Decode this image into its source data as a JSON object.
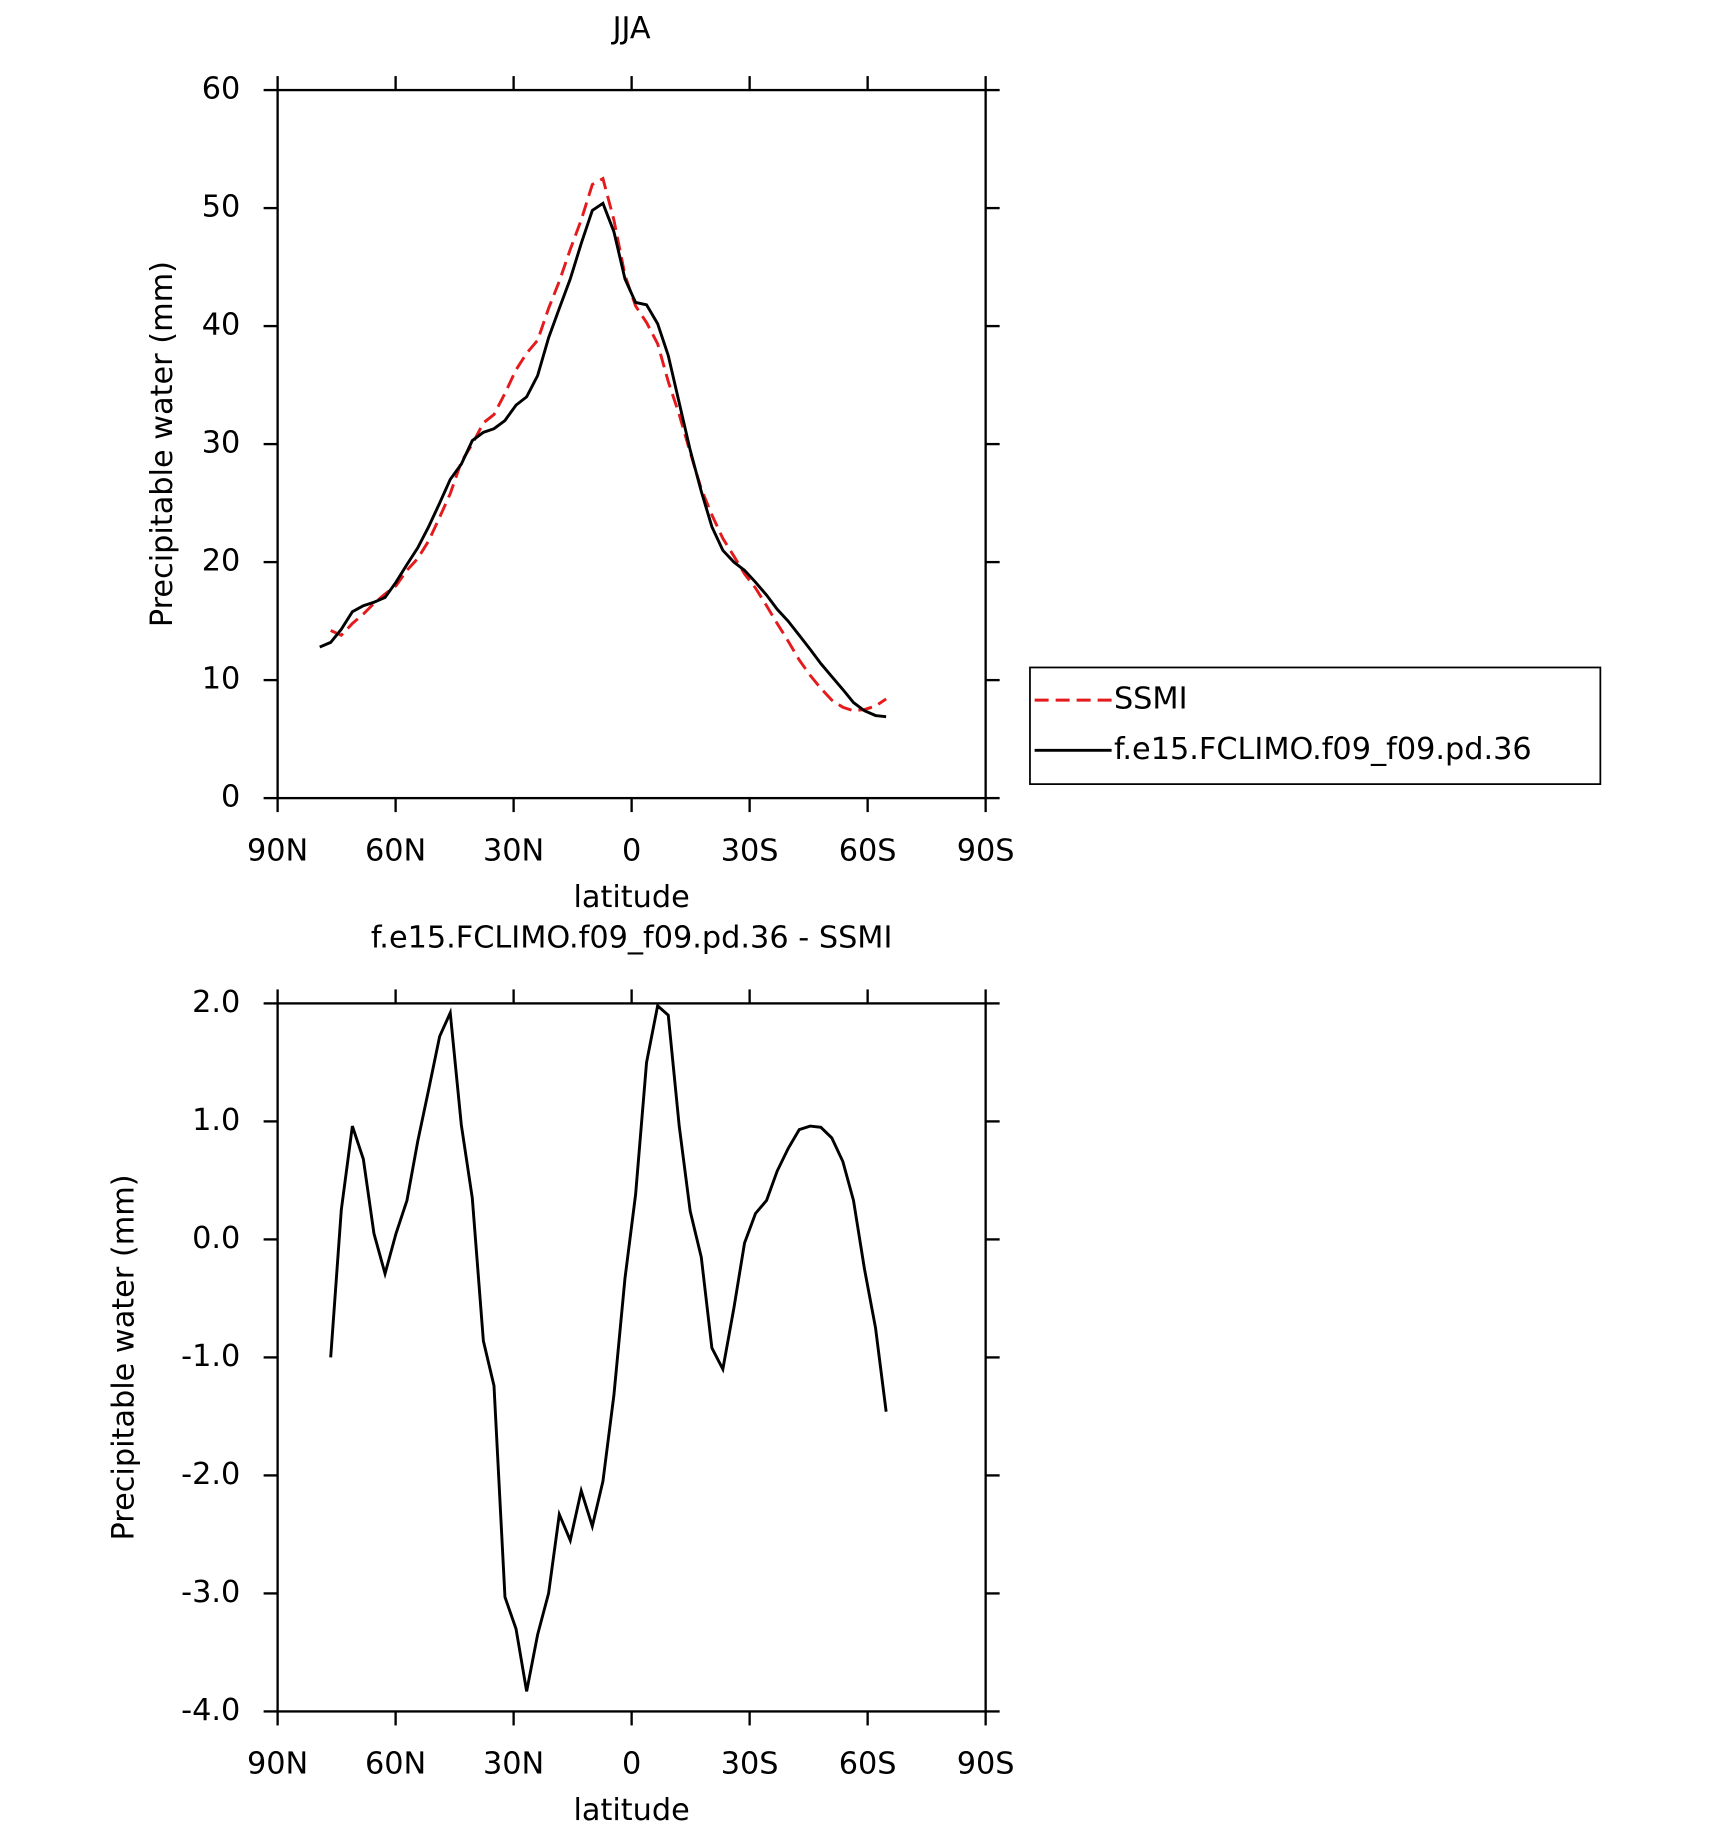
{
  "chart_data": [
    {
      "type": "line",
      "title": "JJA",
      "xlabel": "latitude",
      "ylabel": "Precipitable water (mm)",
      "xlim": [
        90,
        -90
      ],
      "xticks": [
        {
          "value": 90,
          "label": "90N"
        },
        {
          "value": 60,
          "label": "60N"
        },
        {
          "value": 30,
          "label": "30N"
        },
        0,
        {
          "value": -30,
          "label": "30S"
        },
        {
          "value": -60,
          "label": "60S"
        },
        {
          "value": -90,
          "label": "90S"
        }
      ],
      "ylim": [
        0,
        60
      ],
      "yticks": [
        0,
        10,
        20,
        30,
        40,
        50,
        60
      ],
      "legend": "outside right",
      "x": [
        79.3,
        76.5,
        73.8,
        71.0,
        68.2,
        65.5,
        62.7,
        59.9,
        57.1,
        54.4,
        51.6,
        48.8,
        46.1,
        43.3,
        40.5,
        37.7,
        35.0,
        32.2,
        29.4,
        26.7,
        23.9,
        21.1,
        18.4,
        15.6,
        12.8,
        10.0,
        7.3,
        4.5,
        1.7,
        -1.0,
        -3.8,
        -6.6,
        -9.3,
        -12.1,
        -14.9,
        -17.7,
        -20.4,
        -23.2,
        -26.0,
        -28.7,
        -31.5,
        -34.3,
        -37.0,
        -39.8,
        -42.6,
        -45.4,
        -48.1,
        -50.9,
        -53.7,
        -56.4,
        -59.2,
        -62.0,
        -64.7
      ],
      "series": [
        {
          "name": "SSMI",
          "color": "#e41a1c",
          "dash": true,
          "values": [
            null,
            14.2,
            13.8,
            14.8,
            15.6,
            16.5,
            17.3,
            18.0,
            19.3,
            20.3,
            21.8,
            23.8,
            25.8,
            28.5,
            30.0,
            31.8,
            32.5,
            34.3,
            36.3,
            37.7,
            38.8,
            41.5,
            43.8,
            46.5,
            49.0,
            52.0,
            52.5,
            49.0,
            44.3,
            41.7,
            40.3,
            38.5,
            35.3,
            32.5,
            29.3,
            26.2,
            24.0,
            22.0,
            20.5,
            19.0,
            17.8,
            16.3,
            14.8,
            13.3,
            11.7,
            10.4,
            9.3,
            8.3,
            7.7,
            7.4,
            7.5,
            7.8,
            8.4
          ]
        },
        {
          "name": "f.e15.FCLIMO.f09_f09.pd.36",
          "color": "#000000",
          "dash": false,
          "values": [
            12.8,
            13.2,
            14.3,
            15.8,
            16.3,
            16.6,
            17.0,
            18.3,
            19.8,
            21.2,
            23.0,
            25.0,
            27.0,
            28.3,
            30.3,
            31.0,
            31.3,
            32.0,
            33.3,
            34.0,
            35.8,
            39.0,
            41.5,
            44.0,
            47.0,
            49.8,
            50.4,
            48.0,
            44.0,
            42.0,
            41.8,
            40.2,
            37.5,
            33.5,
            29.5,
            26.0,
            23.0,
            21.0,
            20.0,
            19.3,
            18.3,
            17.2,
            16.0,
            15.0,
            13.8,
            12.6,
            11.4,
            10.3,
            9.2,
            8.1,
            7.4,
            7.0,
            6.9
          ]
        }
      ]
    },
    {
      "type": "line",
      "title": "f.e15.FCLIMO.f09_f09.pd.36 - SSMI",
      "xlabel": "latitude",
      "ylabel": "Precipitable water (mm)",
      "xlim": [
        90,
        -90
      ],
      "xticks": [
        {
          "value": 90,
          "label": "90N"
        },
        {
          "value": 60,
          "label": "60N"
        },
        {
          "value": 30,
          "label": "30N"
        },
        0,
        {
          "value": -30,
          "label": "30S"
        },
        {
          "value": -60,
          "label": "60S"
        },
        {
          "value": -90,
          "label": "90S"
        }
      ],
      "ylim": [
        -4,
        2
      ],
      "yticks": [
        {
          "value": -4,
          "label": "-4.0"
        },
        {
          "value": -3,
          "label": "-3.0"
        },
        {
          "value": -2,
          "label": "-2.0"
        },
        {
          "value": -1,
          "label": "-1.0"
        },
        {
          "value": 0,
          "label": "0.0"
        },
        {
          "value": 1,
          "label": "1.0"
        },
        {
          "value": 2,
          "label": "2.0"
        }
      ],
      "x": [
        79.3,
        76.5,
        73.8,
        71.0,
        68.2,
        65.5,
        62.7,
        59.9,
        57.1,
        54.4,
        51.6,
        48.8,
        46.1,
        43.3,
        40.5,
        37.7,
        35.0,
        32.2,
        29.4,
        26.7,
        23.9,
        21.1,
        18.4,
        15.6,
        12.8,
        10.0,
        7.3,
        4.5,
        1.7,
        -1.0,
        -3.8,
        -6.6,
        -9.3,
        -12.1,
        -14.9,
        -17.7,
        -20.4,
        -23.2,
        -26.0,
        -28.7,
        -31.5,
        -34.3,
        -37.0,
        -39.8,
        -42.6,
        -45.4,
        -48.1,
        -50.9,
        -53.7,
        -56.4,
        -59.2,
        -62.0,
        -64.7
      ],
      "series": [
        {
          "color": "#000000",
          "dash": false,
          "values": [
            null,
            -1.0,
            0.25,
            0.96,
            0.68,
            0.05,
            -0.29,
            0.05,
            0.33,
            0.83,
            1.27,
            1.72,
            1.92,
            0.97,
            0.35,
            -0.86,
            -1.24,
            -3.03,
            -3.3,
            -3.83,
            -3.35,
            -3.0,
            -2.33,
            -2.55,
            -2.13,
            -2.43,
            -2.05,
            -1.32,
            -0.33,
            0.38,
            1.5,
            1.98,
            1.9,
            0.96,
            0.24,
            -0.15,
            -0.92,
            -1.1,
            -0.58,
            -0.03,
            0.22,
            0.33,
            0.58,
            0.77,
            0.93,
            0.96,
            0.95,
            0.86,
            0.66,
            0.33,
            -0.25,
            -0.75,
            -1.46
          ]
        }
      ]
    }
  ]
}
